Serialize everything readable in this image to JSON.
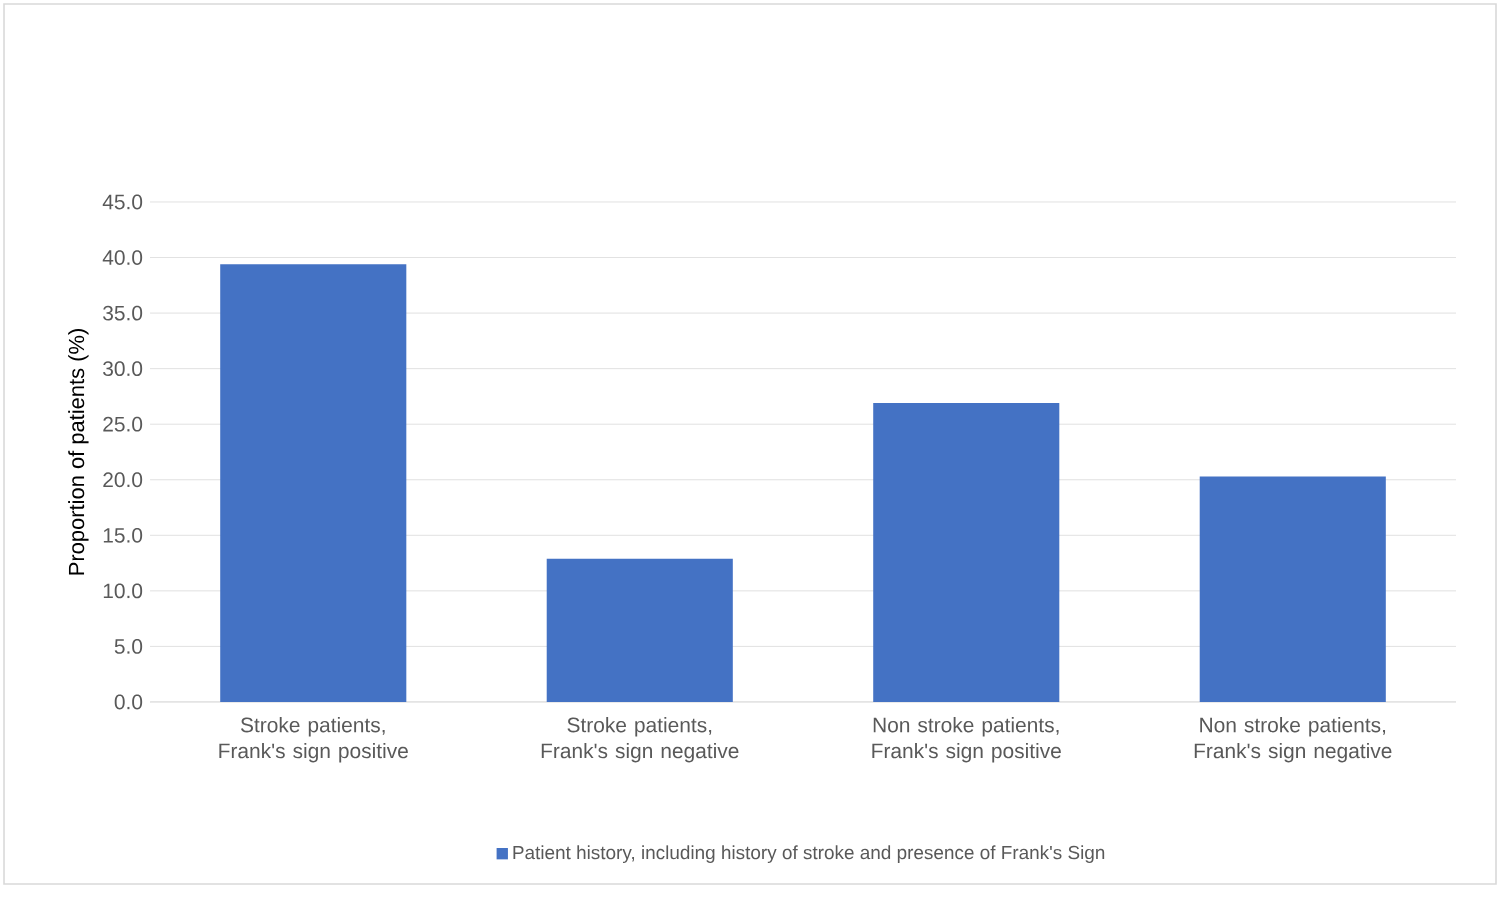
{
  "chart_data": {
    "type": "bar",
    "ylabel": "Proportion of patients (%)",
    "categories": [
      "Stroke patients, Frank's sign positive",
      "Stroke patients, Frank's sign negative",
      "Non stroke patients, Frank's sign positive",
      "Non stroke patients, Frank's sign negative"
    ],
    "series": [
      {
        "name": "Patient history, including history of stroke and presence of Frank's Sign",
        "color": "#4472c4",
        "values": [
          39.4,
          12.9,
          26.9,
          20.3
        ]
      }
    ],
    "ylim": [
      0,
      45
    ],
    "yticks": [
      {
        "value": 0,
        "label": "0.0"
      },
      {
        "value": 5,
        "label": "5.0"
      },
      {
        "value": 10,
        "label": "10.0"
      },
      {
        "value": 15,
        "label": "15.0"
      },
      {
        "value": 20,
        "label": "20.0"
      },
      {
        "value": 25,
        "label": "25.0"
      },
      {
        "value": 30,
        "label": "30.0"
      },
      {
        "value": 35,
        "label": "35.0"
      },
      {
        "value": 40,
        "label": "40.0"
      },
      {
        "value": 45,
        "label": "45.0"
      }
    ],
    "grid": "y",
    "legend": "bottom"
  }
}
